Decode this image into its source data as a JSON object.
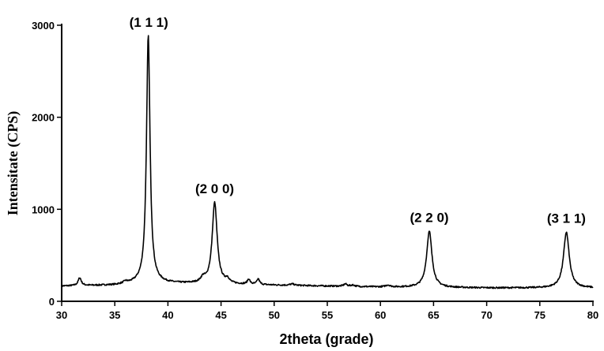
{
  "chart_data": {
    "type": "line",
    "title": "",
    "xlabel": "2theta (grade)",
    "ylabel": "Intensitate (CPS)",
    "xlim": [
      30,
      80
    ],
    "ylim": [
      0,
      3000
    ],
    "xticks": [
      30,
      35,
      40,
      45,
      50,
      55,
      60,
      65,
      70,
      75,
      80
    ],
    "yticks": [
      0,
      1000,
      2000,
      3000
    ],
    "grid": false,
    "legend": "none",
    "line_color": "#000000",
    "annotations": [
      {
        "text": "(1 1 1)",
        "x": 38.2,
        "y": 2880
      },
      {
        "text": "(2 0 0)",
        "x": 44.4,
        "y": 1070
      },
      {
        "text": "(2 2 0)",
        "x": 64.6,
        "y": 760
      },
      {
        "text": "(3 1 1)",
        "x": 77.5,
        "y": 750
      }
    ],
    "series": [
      {
        "baseline": [
          [
            30,
            165
          ],
          [
            35,
            175
          ],
          [
            38,
            205
          ],
          [
            40,
            195
          ],
          [
            45,
            185
          ],
          [
            50,
            175
          ],
          [
            55,
            165
          ],
          [
            60,
            155
          ],
          [
            65,
            150
          ],
          [
            70,
            145
          ],
          [
            75,
            145
          ],
          [
            80,
            145
          ]
        ],
        "peaks": [
          {
            "center": 31.7,
            "height": 85,
            "width": 0.18
          },
          {
            "center": 36.0,
            "height": 20,
            "width": 0.2
          },
          {
            "center": 38.15,
            "height": 2680,
            "width": 0.2
          },
          {
            "center": 43.3,
            "height": 50,
            "width": 0.25
          },
          {
            "center": 44.4,
            "height": 885,
            "width": 0.28
          },
          {
            "center": 45.6,
            "height": 45,
            "width": 0.2
          },
          {
            "center": 47.6,
            "height": 55,
            "width": 0.15
          },
          {
            "center": 48.5,
            "height": 60,
            "width": 0.15
          },
          {
            "center": 51.7,
            "height": 15,
            "width": 0.25
          },
          {
            "center": 56.7,
            "height": 25,
            "width": 0.2
          },
          {
            "center": 57.4,
            "height": 15,
            "width": 0.2
          },
          {
            "center": 60.7,
            "height": 20,
            "width": 0.25
          },
          {
            "center": 64.6,
            "height": 610,
            "width": 0.3
          },
          {
            "center": 77.5,
            "height": 605,
            "width": 0.32
          }
        ]
      }
    ]
  }
}
